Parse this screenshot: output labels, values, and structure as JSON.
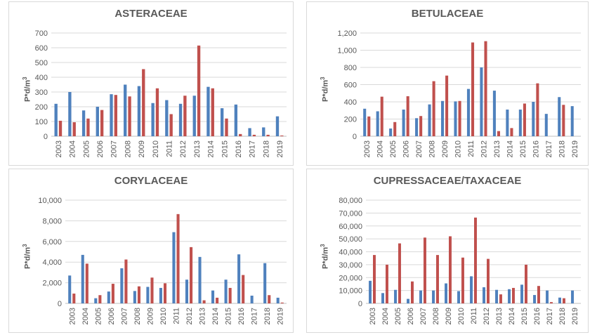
{
  "y_axis_label": "P*d/m",
  "y_axis_label_sup": "3",
  "colors": {
    "series_a": "#4F81BD",
    "series_b": "#C0504D",
    "grid": "#d9d9d9",
    "text": "#595959"
  },
  "chart_data": [
    {
      "type": "bar",
      "title": "ASTERACEAE",
      "ylabel": "P*d/m³",
      "ylim": [
        0,
        700
      ],
      "yticks": [
        0,
        100,
        200,
        300,
        400,
        500,
        600,
        700
      ],
      "ytick_labels": [
        "0",
        "100",
        "200",
        "300",
        "400",
        "500",
        "600",
        "700"
      ],
      "categories": [
        "2003",
        "2004",
        "2005",
        "2006",
        "2007",
        "2008",
        "2009",
        "2010",
        "2011",
        "2012",
        "2013",
        "2014",
        "2015",
        "2016",
        "2017",
        "2018",
        "2019"
      ],
      "series": [
        {
          "values": [
            220,
            300,
            175,
            200,
            285,
            350,
            340,
            225,
            245,
            220,
            275,
            335,
            190,
            215,
            55,
            60,
            135
          ]
        },
        {
          "values": [
            105,
            95,
            120,
            178,
            280,
            270,
            455,
            325,
            150,
            275,
            615,
            325,
            120,
            15,
            10,
            10,
            5
          ]
        }
      ]
    },
    {
      "type": "bar",
      "title": "BETULACEAE",
      "ylabel": "P*d/m³",
      "ylim": [
        0,
        1200
      ],
      "yticks": [
        0,
        200,
        400,
        600,
        800,
        1000,
        1200
      ],
      "ytick_labels": [
        "0",
        "200",
        "400",
        "600",
        "800",
        "1,000",
        "1,200"
      ],
      "categories": [
        "2003",
        "2004",
        "2005",
        "2006",
        "2007",
        "2008",
        "2009",
        "2010",
        "2011",
        "2012",
        "2013",
        "2014",
        "2015",
        "2016",
        "2017",
        "2018",
        "2019"
      ],
      "series": [
        {
          "values": [
            320,
            290,
            90,
            310,
            210,
            370,
            410,
            405,
            550,
            800,
            530,
            310,
            310,
            400,
            260,
            455,
            350
          ]
        },
        {
          "values": [
            230,
            460,
            165,
            465,
            235,
            640,
            705,
            410,
            1090,
            1105,
            60,
            95,
            380,
            615,
            0,
            365,
            0
          ]
        }
      ]
    },
    {
      "type": "bar",
      "title": "CORYLACEAE",
      "ylabel": "P*d/m³",
      "ylim": [
        0,
        10000
      ],
      "yticks": [
        0,
        2000,
        4000,
        6000,
        8000,
        10000
      ],
      "ytick_labels": [
        "0",
        "2,000",
        "4,000",
        "6,000",
        "8,000",
        "10,000"
      ],
      "categories": [
        "2003",
        "2004",
        "2005",
        "2006",
        "2007",
        "2008",
        "2009",
        "2010",
        "2011",
        "2012",
        "2013",
        "2014",
        "2015",
        "2016",
        "2017",
        "2018",
        "2019"
      ],
      "series": [
        {
          "values": [
            2700,
            4700,
            500,
            1150,
            3400,
            1200,
            1600,
            1500,
            6900,
            2300,
            4500,
            1250,
            2300,
            4750,
            750,
            3900,
            550
          ]
        },
        {
          "values": [
            950,
            3850,
            800,
            1900,
            4250,
            1650,
            2500,
            1950,
            8650,
            5450,
            300,
            550,
            1500,
            2750,
            0,
            800,
            80
          ]
        }
      ]
    },
    {
      "type": "bar",
      "title": "CUPRESSACEAE/TAXACEAE",
      "ylabel": "P*d/m³",
      "ylim": [
        0,
        80000
      ],
      "yticks": [
        0,
        10000,
        20000,
        30000,
        40000,
        50000,
        60000,
        70000,
        80000
      ],
      "ytick_labels": [
        "0",
        "10,000",
        "20,000",
        "30,000",
        "40,000",
        "50,000",
        "60,000",
        "70,000",
        "80,000"
      ],
      "categories": [
        "2003",
        "2004",
        "2005",
        "2006",
        "2007",
        "2008",
        "2009",
        "2010",
        "2011",
        "2012",
        "2013",
        "2014",
        "2015",
        "2016",
        "2017",
        "2018",
        "2019"
      ],
      "series": [
        {
          "values": [
            17500,
            8000,
            10500,
            3500,
            10000,
            10000,
            15500,
            9500,
            21000,
            12500,
            10500,
            11000,
            14500,
            6500,
            10000,
            4500,
            10000
          ]
        },
        {
          "values": [
            37500,
            30000,
            46500,
            17000,
            51000,
            37500,
            52000,
            35500,
            66500,
            34500,
            7000,
            12000,
            30000,
            13500,
            1000,
            4000,
            0
          ]
        }
      ]
    }
  ]
}
